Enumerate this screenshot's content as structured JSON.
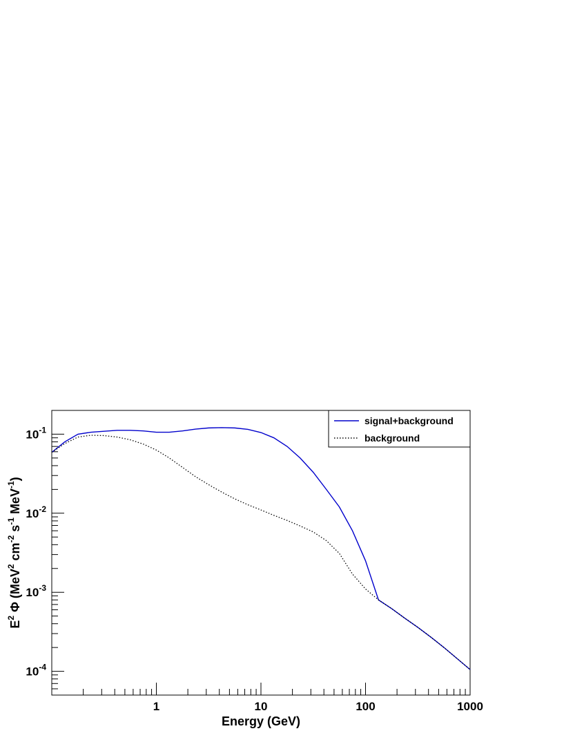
{
  "chart_data": {
    "type": "line",
    "xlabel": "Energy (GeV)",
    "ylabel": {
      "parts": [
        {
          "t": "E",
          "s": "n"
        },
        {
          "t": "2",
          "s": "sup"
        },
        {
          "t": " Φ (MeV",
          "s": "n"
        },
        {
          "t": "2",
          "s": "sup"
        },
        {
          "t": " cm",
          "s": "n"
        },
        {
          "t": "-2",
          "s": "sup"
        },
        {
          "t": " s",
          "s": "n"
        },
        {
          "t": "-1",
          "s": "sup"
        },
        {
          "t": " MeV",
          "s": "n"
        },
        {
          "t": "-1",
          "s": "sup"
        },
        {
          "t": ")",
          "s": "n"
        }
      ]
    },
    "x_scale": "log",
    "y_scale": "log",
    "xlim": [
      0.1,
      1000
    ],
    "ylim": [
      5e-05,
      0.2
    ],
    "grid": false,
    "legend_position": "top-right",
    "x_ticks": [
      {
        "value": 1,
        "label": "1"
      },
      {
        "value": 10,
        "label": "10"
      },
      {
        "value": 100,
        "label": "100"
      },
      {
        "value": 1000,
        "label": "1000"
      }
    ],
    "y_ticks": [
      {
        "value": 0.0001,
        "base": "10",
        "exp": "-4"
      },
      {
        "value": 0.001,
        "base": "10",
        "exp": "-3"
      },
      {
        "value": 0.01,
        "base": "10",
        "exp": "-2"
      },
      {
        "value": 0.1,
        "base": "10",
        "exp": "-1"
      }
    ],
    "series": [
      {
        "name": "signal+background",
        "color": "#0000cc",
        "style": "solid",
        "x": [
          0.1,
          0.133,
          0.178,
          0.237,
          0.316,
          0.422,
          0.562,
          0.75,
          1.0,
          1.33,
          1.78,
          2.37,
          3.16,
          4.22,
          5.62,
          7.5,
          10,
          13.3,
          17.8,
          23.7,
          31.6,
          42.2,
          56.2,
          75,
          100,
          133,
          178,
          237,
          316,
          422,
          562,
          750,
          1000
        ],
        "y": [
          0.059,
          0.08,
          0.1,
          0.106,
          0.109,
          0.112,
          0.112,
          0.11,
          0.106,
          0.106,
          0.11,
          0.116,
          0.12,
          0.121,
          0.12,
          0.115,
          0.105,
          0.09,
          0.07,
          0.05,
          0.033,
          0.02,
          0.012,
          0.006,
          0.0025,
          0.0008,
          0.00062,
          0.00047,
          0.00036,
          0.00027,
          0.0002,
          0.000145,
          0.000105
        ]
      },
      {
        "name": "background",
        "color": "#000000",
        "style": "dotted",
        "x": [
          0.1,
          0.133,
          0.178,
          0.237,
          0.316,
          0.422,
          0.562,
          0.75,
          1.0,
          1.33,
          1.78,
          2.37,
          3.16,
          4.22,
          5.62,
          7.5,
          10,
          13.3,
          17.8,
          23.7,
          31.6,
          42.2,
          56.2,
          75,
          100,
          133,
          178,
          237,
          316,
          422,
          562,
          750,
          1000
        ],
        "y": [
          0.059,
          0.076,
          0.092,
          0.097,
          0.096,
          0.092,
          0.085,
          0.075,
          0.063,
          0.05,
          0.038,
          0.029,
          0.023,
          0.0185,
          0.0152,
          0.0128,
          0.011,
          0.0094,
          0.0081,
          0.0069,
          0.0058,
          0.0045,
          0.0031,
          0.0017,
          0.0011,
          0.0008,
          0.00062,
          0.00047,
          0.00036,
          0.00027,
          0.0002,
          0.000145,
          0.000105
        ]
      }
    ]
  }
}
